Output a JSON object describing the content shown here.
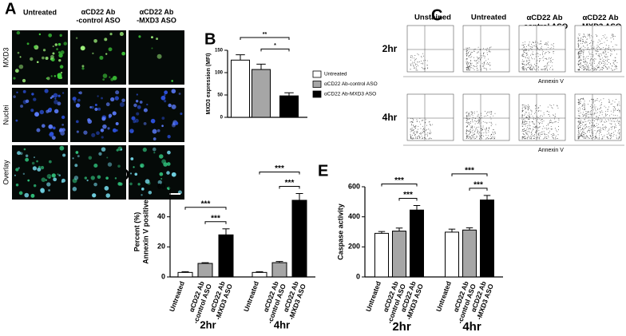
{
  "panels": {
    "A": "A",
    "B": "B",
    "C": "C",
    "D": "D",
    "E": "E"
  },
  "panel_a": {
    "columns": [
      "Untreated",
      "αCD22 Ab -control ASO",
      "αCD22 Ab -MXD3 ASO"
    ],
    "rows": [
      "MXD3",
      "Nuclei",
      "Overlay"
    ]
  },
  "panel_c": {
    "columns": [
      "Unstained",
      "Untreated",
      "αCD22 Ab -control ASO",
      "αCD22 Ab -MXD3 ASO"
    ],
    "rows": [
      "2hr",
      "4hr"
    ],
    "x_axis_label": "Annexin V"
  },
  "chart_data": [
    {
      "type": "bar",
      "ylabel": [
        "MXD3 expression (MFI)"
      ],
      "ylim": [
        0,
        150
      ],
      "yticks": [
        0,
        50,
        100,
        150
      ],
      "legend": "right",
      "series": [
        {
          "name": "Untreated",
          "color": "#ffffff",
          "values": [
            128
          ],
          "errors": [
            12
          ]
        },
        {
          "name": "αCD22 Ab-control ASO",
          "color": "#a6a6a6",
          "values": [
            107
          ],
          "errors": [
            12
          ]
        },
        {
          "name": "αCD22 Ab-MXD3 ASO",
          "color": "#000000",
          "values": [
            48
          ],
          "errors": [
            7
          ]
        }
      ],
      "annotations": [
        "**",
        "*"
      ]
    },
    {
      "type": "grouped_bar",
      "ylabel": [
        "Percent (%)",
        "Annexin V positive"
      ],
      "ylim": [
        0,
        60
      ],
      "yticks": [
        0,
        20,
        40,
        60
      ],
      "groups": [
        "2hr",
        "4hr"
      ],
      "series": [
        {
          "name": "Untreated",
          "color": "#ffffff",
          "values": [
            3,
            3
          ],
          "errors": [
            0.5,
            0.5
          ]
        },
        {
          "name": "αCD22 Ab -control ASO",
          "color": "#a6a6a6",
          "values": [
            9,
            9.5
          ],
          "errors": [
            0.5,
            0.8
          ]
        },
        {
          "name": "αCD22 Ab -MXD3 ASO",
          "color": "#000000",
          "values": [
            28,
            51
          ],
          "errors": [
            4,
            4.5
          ]
        }
      ],
      "annotations": [
        "***",
        "***",
        "***",
        "***"
      ]
    },
    {
      "type": "grouped_bar",
      "ylabel": [
        "Caspase activity"
      ],
      "ylim": [
        0,
        600
      ],
      "yticks": [
        0,
        200,
        400,
        600
      ],
      "groups": [
        "2hr",
        "4hr"
      ],
      "series": [
        {
          "name": "Untreated",
          "color": "#ffffff",
          "values": [
            290,
            298
          ],
          "errors": [
            12,
            20
          ]
        },
        {
          "name": "αCD22 Ab -control ASO",
          "color": "#a6a6a6",
          "values": [
            305,
            312
          ],
          "errors": [
            20,
            15
          ]
        },
        {
          "name": "αCD22 Ab -MXD3 ASO",
          "color": "#000000",
          "values": [
            445,
            512
          ],
          "errors": [
            30,
            30
          ]
        }
      ],
      "annotations": [
        "***",
        "***",
        "***",
        "***"
      ]
    }
  ]
}
